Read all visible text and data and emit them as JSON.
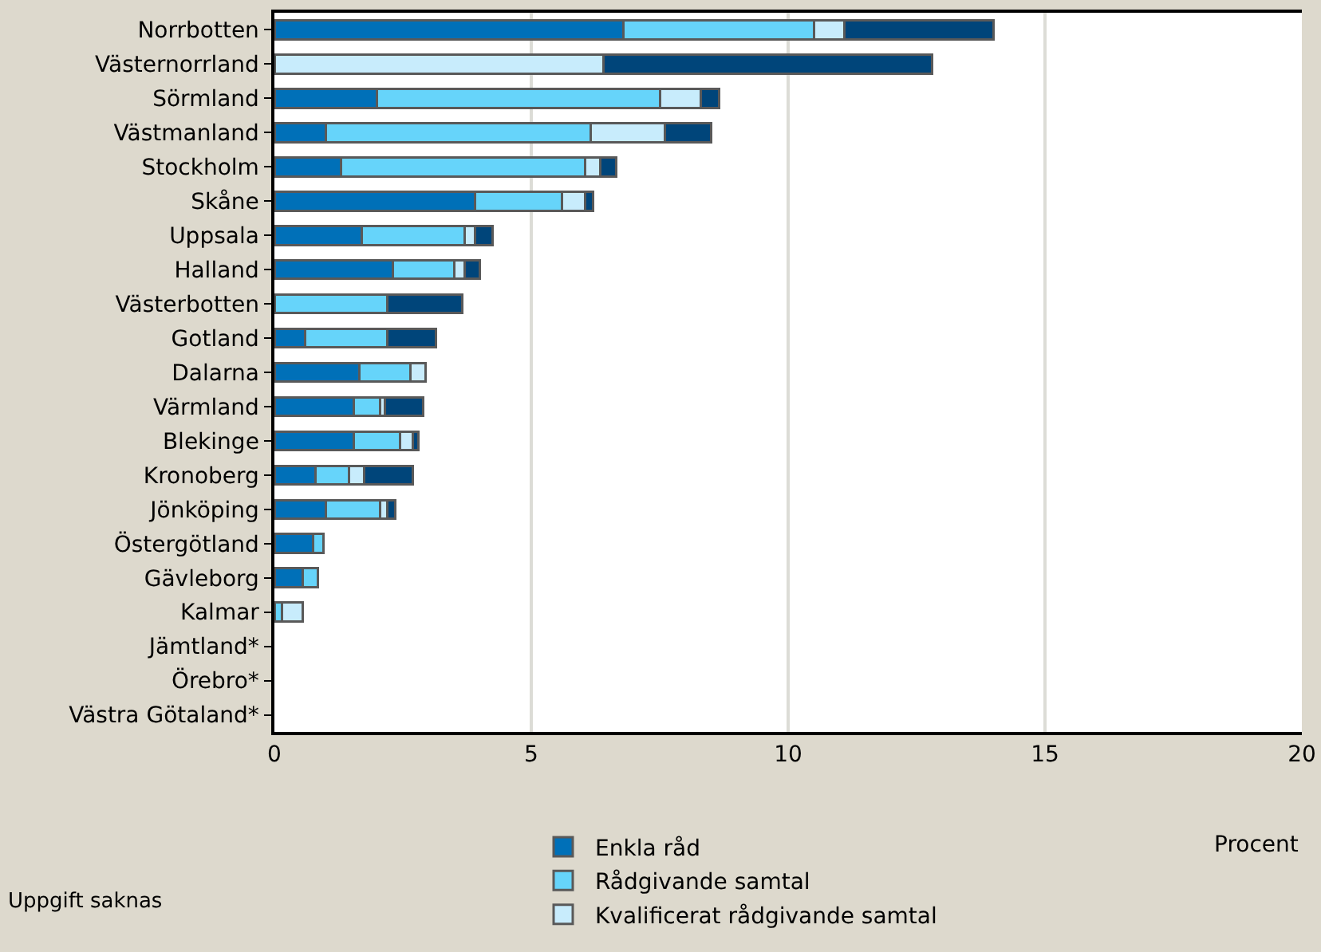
{
  "chart_data": {
    "type": "bar",
    "orientation": "horizontal",
    "stacked": true,
    "xlabel": "Procent",
    "categories": [
      "Norrbotten",
      "Västernorrland",
      "Sörmland",
      "Västmanland",
      "Stockholm",
      "Skåne",
      "Uppsala",
      "Halland",
      "Västerbotten",
      "Gotland",
      "Dalarna",
      "Värmland",
      "Blekinge",
      "Kronoberg",
      "Jönköping",
      "Östergötland",
      "Gävleborg",
      "Kalmar",
      "Jämtland*",
      "Örebro*",
      "Västra Götaland*"
    ],
    "series": [
      {
        "name": "Enkla råd",
        "color": "#0070b8",
        "values": [
          6.8,
          0,
          2.0,
          1.0,
          1.3,
          3.9,
          1.7,
          2.3,
          0,
          0.6,
          1.65,
          1.55,
          1.55,
          0.8,
          1.0,
          0.75,
          0.55,
          0,
          null,
          null,
          null
        ]
      },
      {
        "name": "Rådgivande samtal",
        "color": "#66d4fa",
        "values": [
          3.7,
          0,
          5.5,
          5.15,
          4.75,
          1.7,
          2.0,
          1.2,
          2.2,
          1.6,
          1.0,
          0.5,
          0.9,
          0.65,
          1.05,
          0.2,
          0.3,
          0.15,
          null,
          null,
          null
        ]
      },
      {
        "name": "Kvalificerat rådgivande samtal",
        "color": "#c8ecfc",
        "values": [
          0.6,
          6.4,
          0.8,
          1.45,
          0.3,
          0.45,
          0.2,
          0.2,
          0,
          0,
          0.3,
          0.1,
          0.25,
          0.3,
          0.15,
          0,
          0,
          0.4,
          null,
          null,
          null
        ]
      },
      {
        "color": "#00457a",
        "values": [
          2.9,
          6.4,
          0.35,
          0.9,
          0.3,
          0.15,
          0.35,
          0.3,
          1.45,
          0.95,
          0,
          0.75,
          0.1,
          0.95,
          0.15,
          0,
          0,
          0,
          null,
          null,
          null
        ]
      }
    ],
    "xlim": [
      0,
      20
    ],
    "xticks": [
      0,
      5,
      10,
      15,
      20
    ],
    "grid": "x",
    "legend": "bottom",
    "annotations": [
      "Uppgift saknas"
    ]
  }
}
